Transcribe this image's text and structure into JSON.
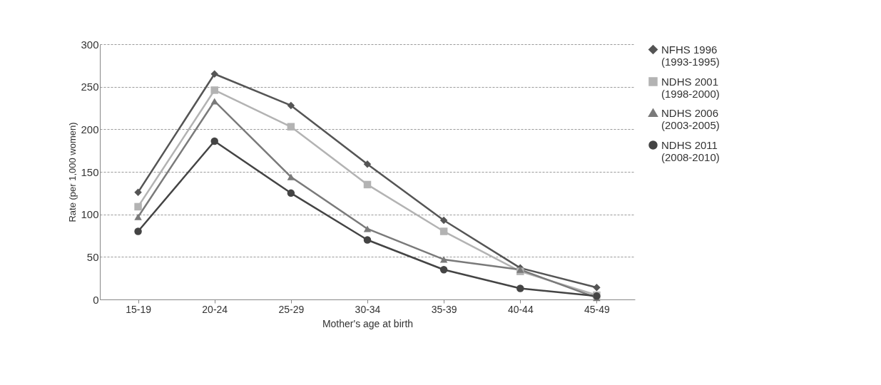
{
  "chart_data": {
    "type": "line",
    "xlabel": "Mother's age at birth",
    "ylabel": "Rate (per 1,000 women)",
    "categories": [
      "15-19",
      "20-24",
      "25-29",
      "30-34",
      "35-39",
      "40-44",
      "45-49"
    ],
    "series": [
      {
        "name": "NFHS 1996\n(1993-1995)",
        "color": "#555555",
        "marker": "diamond",
        "values": [
          126,
          265,
          228,
          159,
          93,
          37,
          14
        ]
      },
      {
        "name": "NDHS 2001\n(1998-2000)",
        "color": "#b3b3b3",
        "marker": "square",
        "values": [
          109,
          246,
          203,
          135,
          80,
          33,
          5
        ]
      },
      {
        "name": "NDHS 2006\n(2003-2005)",
        "color": "#7a7a7a",
        "marker": "triangle",
        "values": [
          97,
          233,
          144,
          83,
          47,
          35,
          2
        ]
      },
      {
        "name": "NDHS 2011\n(2008-2010)",
        "color": "#444444",
        "marker": "circle",
        "values": [
          80,
          186,
          125,
          70,
          35,
          13,
          4
        ]
      }
    ],
    "ylim": [
      0,
      300
    ],
    "yticks": [
      0,
      50,
      100,
      150,
      200,
      250,
      300
    ],
    "grid": "y",
    "legend": "right",
    "line_style": "solid"
  }
}
